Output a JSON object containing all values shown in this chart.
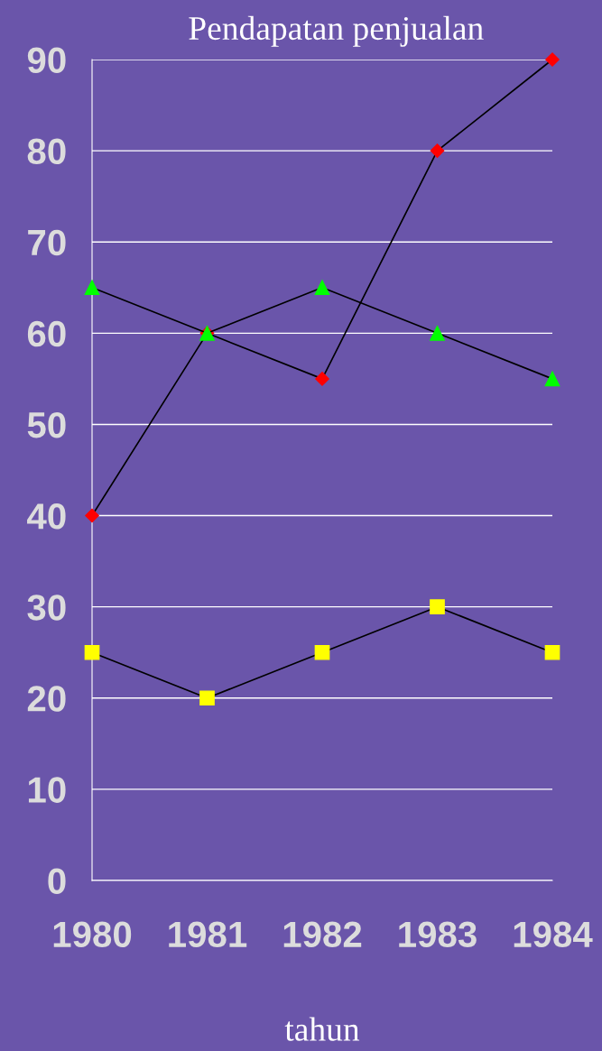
{
  "chart_data": {
    "type": "line",
    "title": "Pendapatan penjualan",
    "xlabel": "tahun",
    "categories": [
      "1980",
      "1981",
      "1982",
      "1983",
      "1984"
    ],
    "series": [
      {
        "color": "#ff0000",
        "marker": "diamond",
        "values": [
          40,
          60,
          55,
          80,
          90
        ]
      },
      {
        "color": "#00ff00",
        "marker": "triangle",
        "values": [
          65,
          60,
          65,
          60,
          55
        ]
      },
      {
        "color": "#ffff00",
        "marker": "square",
        "values": [
          25,
          20,
          25,
          30,
          25
        ]
      }
    ],
    "ylim": [
      0,
      90
    ],
    "yticks": [
      0,
      10,
      20,
      30,
      40,
      50,
      60,
      70,
      80,
      90
    ],
    "grid": "y",
    "legend": false
  }
}
